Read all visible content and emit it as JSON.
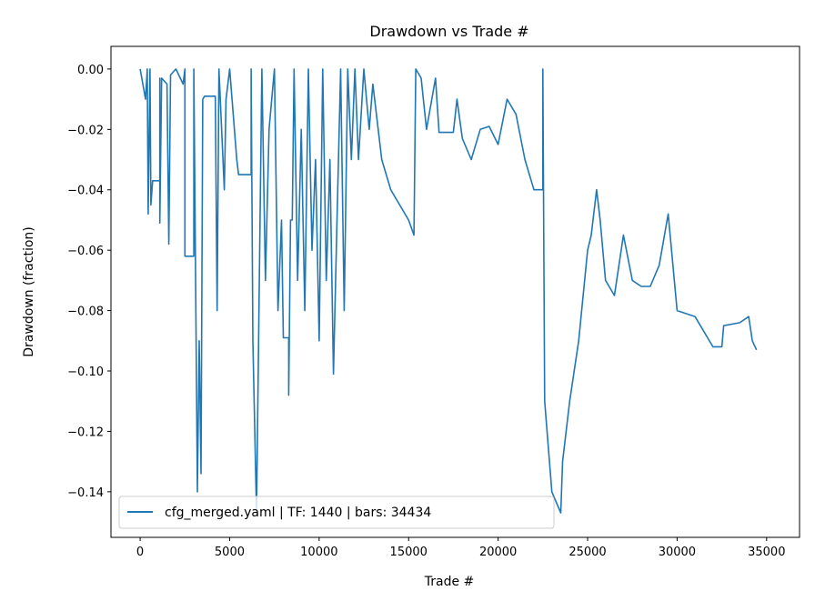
{
  "chart_data": {
    "type": "line",
    "title": "Drawdown vs Trade #",
    "xlabel": "Trade #",
    "ylabel": "Drawdown (fraction)",
    "series": [
      {
        "name": "cfg_merged.yaml | TF: 1440 | bars: 34434",
        "color": "#1f77b4",
        "x": [
          0,
          300,
          400,
          450,
          550,
          600,
          700,
          1100,
          1100,
          1100,
          1200,
          1500,
          1600,
          1700,
          2000,
          2400,
          2500,
          2500,
          3000,
          3000,
          3200,
          3300,
          3400,
          3500,
          3600,
          4200,
          4300,
          4400,
          4700,
          4800,
          5000,
          5400,
          5500,
          6200,
          6200,
          6300,
          6500,
          6600,
          6700,
          6800,
          7000,
          7200,
          7500,
          7700,
          7900,
          8000,
          8300,
          8300,
          8400,
          8500,
          8600,
          8800,
          9000,
          9200,
          9400,
          9600,
          9800,
          10000,
          10200,
          10400,
          10600,
          10800,
          11000,
          11200,
          11400,
          11600,
          11800,
          12000,
          12200,
          12500,
          12800,
          13000,
          13500,
          14000,
          14500,
          15000,
          15300,
          15400,
          15700,
          16000,
          16500,
          16700,
          17500,
          17700,
          18000,
          18500,
          19000,
          19500,
          20000,
          20500,
          21000,
          21500,
          22000,
          22500,
          22500,
          22600,
          23000,
          23500,
          23600,
          24000,
          24500,
          25000,
          25200,
          25500,
          25700,
          26000,
          26500,
          27000,
          27500,
          28000,
          28500,
          29000,
          29500,
          30000,
          31000,
          32000,
          32500,
          32600,
          33500,
          34000,
          34200,
          34434
        ],
        "values": [
          0,
          -0.01,
          0,
          -0.048,
          0,
          -0.045,
          -0.037,
          -0.037,
          -0.003,
          -0.051,
          -0.003,
          -0.005,
          -0.058,
          -0.002,
          0,
          -0.005,
          0,
          -0.062,
          -0.062,
          0,
          -0.14,
          -0.09,
          -0.134,
          -0.01,
          -0.009,
          -0.009,
          -0.08,
          0,
          -0.04,
          -0.01,
          0,
          -0.03,
          -0.035,
          -0.035,
          0,
          -0.09,
          -0.147,
          -0.1,
          -0.05,
          0,
          -0.07,
          -0.02,
          0,
          -0.08,
          -0.05,
          -0.089,
          -0.089,
          -0.108,
          -0.05,
          -0.05,
          0,
          -0.07,
          -0.02,
          -0.08,
          0,
          -0.06,
          -0.03,
          -0.09,
          0,
          -0.07,
          -0.03,
          -0.101,
          -0.05,
          0,
          -0.08,
          0,
          -0.03,
          0,
          -0.03,
          0,
          -0.02,
          -0.005,
          -0.03,
          -0.04,
          -0.045,
          -0.05,
          -0.055,
          0,
          -0.003,
          -0.02,
          -0.003,
          -0.021,
          -0.021,
          -0.01,
          -0.023,
          -0.03,
          -0.02,
          -0.019,
          -0.025,
          -0.01,
          -0.015,
          -0.03,
          -0.04,
          -0.04,
          0,
          -0.11,
          -0.14,
          -0.147,
          -0.13,
          -0.11,
          -0.09,
          -0.06,
          -0.055,
          -0.04,
          -0.05,
          -0.07,
          -0.075,
          -0.055,
          -0.07,
          -0.072,
          -0.072,
          -0.065,
          -0.048,
          -0.08,
          -0.082,
          -0.092,
          -0.092,
          -0.085,
          -0.084,
          -0.082,
          -0.09,
          -0.093
        ]
      }
    ],
    "xlim": [
      -1630,
      36840
    ],
    "ylim": [
      -0.1551,
      0.0075
    ],
    "xticks": [
      0,
      5000,
      10000,
      15000,
      20000,
      25000,
      30000,
      35000
    ],
    "yticks": [
      {
        "value": 0,
        "label": "0.00"
      },
      {
        "value": -0.02,
        "label": "−0.02"
      },
      {
        "value": -0.04,
        "label": "−0.04"
      },
      {
        "value": -0.06,
        "label": "−0.06"
      },
      {
        "value": -0.08,
        "label": "−0.08"
      },
      {
        "value": -0.1,
        "label": "−0.10"
      },
      {
        "value": -0.12,
        "label": "−0.12"
      },
      {
        "value": -0.14,
        "label": "−0.14"
      }
    ],
    "legend": "lower left",
    "grid": false
  }
}
